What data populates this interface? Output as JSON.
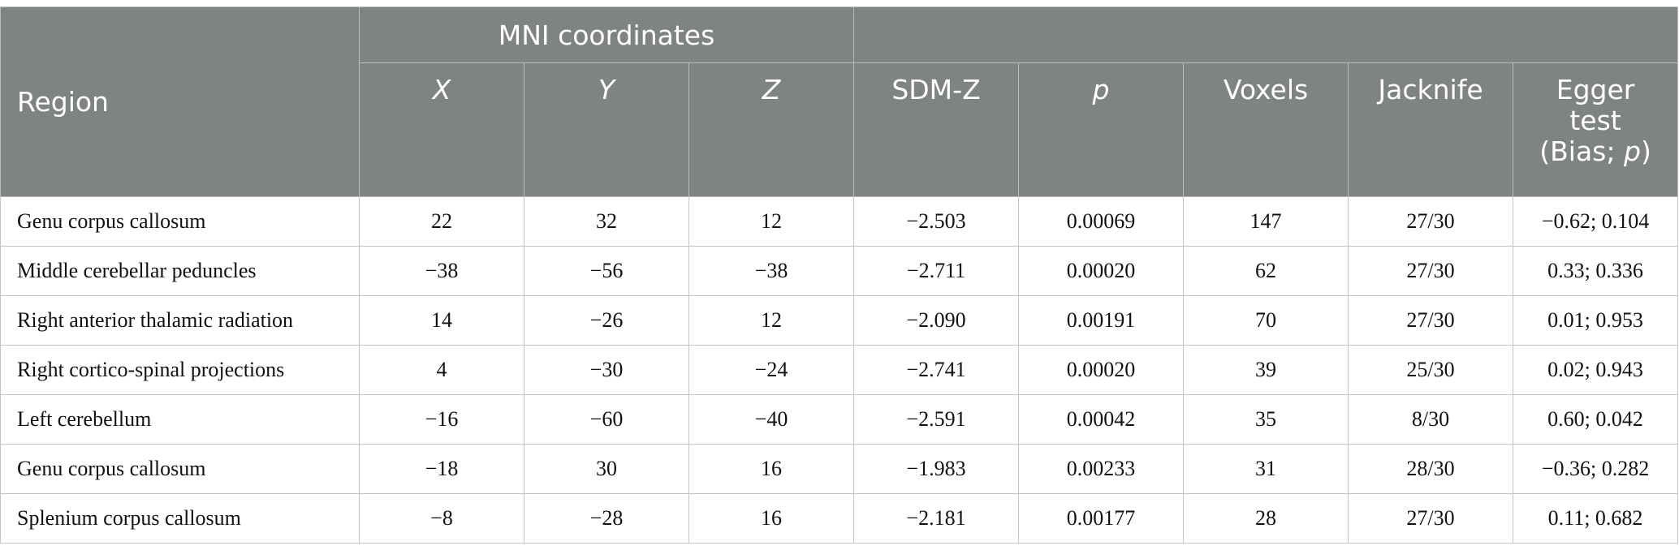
{
  "header": {
    "region": "Region",
    "mni": "MNI coordinates",
    "x": "X",
    "y": "Y",
    "z": "Z",
    "sdmz": "SDM-Z",
    "p": "p",
    "voxels": "Voxels",
    "jacknife": "Jacknife",
    "egger_line1": "Egger",
    "egger_line2": "test",
    "egger_line3_prefix": "(Bias; ",
    "egger_line3_p": "p",
    "egger_line3_suffix": ")"
  },
  "rows": [
    {
      "region": "Genu corpus callosum",
      "x": "22",
      "y": "32",
      "z": "12",
      "sdmz": "−2.503",
      "p": "0.00069",
      "voxels": "147",
      "jacknife": "27/30",
      "egger": "−0.62; 0.104"
    },
    {
      "region": "Middle cerebellar peduncles",
      "x": "−38",
      "y": "−56",
      "z": "−38",
      "sdmz": "−2.711",
      "p": "0.00020",
      "voxels": "62",
      "jacknife": "27/30",
      "egger": "0.33; 0.336"
    },
    {
      "region": "Right anterior thalamic radiation",
      "x": "14",
      "y": "−26",
      "z": "12",
      "sdmz": "−2.090",
      "p": "0.00191",
      "voxels": "70",
      "jacknife": "27/30",
      "egger": "0.01; 0.953"
    },
    {
      "region": "Right cortico-spinal projections",
      "x": "4",
      "y": "−30",
      "z": "−24",
      "sdmz": "−2.741",
      "p": "0.00020",
      "voxels": "39",
      "jacknife": "25/30",
      "egger": "0.02; 0.943"
    },
    {
      "region": "Left cerebellum",
      "x": "−16",
      "y": "−60",
      "z": "−40",
      "sdmz": "−2.591",
      "p": "0.00042",
      "voxels": "35",
      "jacknife": "8/30",
      "egger": "0.60; 0.042"
    },
    {
      "region": "Genu corpus callosum",
      "x": "−18",
      "y": "30",
      "z": "16",
      "sdmz": "−1.983",
      "p": "0.00233",
      "voxels": "31",
      "jacknife": "28/30",
      "egger": "−0.36; 0.282"
    },
    {
      "region": "Splenium corpus callosum",
      "x": "−8",
      "y": "−28",
      "z": "16",
      "sdmz": "−2.181",
      "p": "0.00177",
      "voxels": "28",
      "jacknife": "27/30",
      "egger": "0.11; 0.682"
    }
  ]
}
